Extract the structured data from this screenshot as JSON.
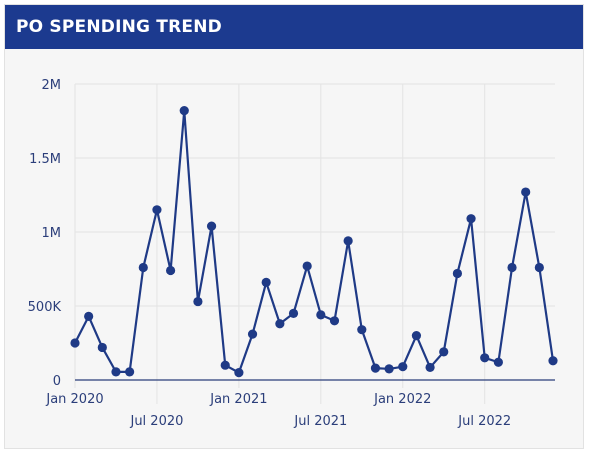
{
  "header": {
    "title": "PO SPENDING TREND"
  },
  "colors": {
    "header_bg": "#1c3a8f",
    "line": "#1f3a86",
    "grid": "#e3e3e3",
    "axis": "#2b3e7a"
  },
  "chart_data": {
    "type": "line",
    "title": "PO SPENDING TREND",
    "xlabel": "",
    "ylabel": "",
    "x": [
      "2020-01",
      "2020-02",
      "2020-03",
      "2020-04",
      "2020-05",
      "2020-06",
      "2020-07",
      "2020-08",
      "2020-09",
      "2020-10",
      "2020-11",
      "2020-12",
      "2021-01",
      "2021-02",
      "2021-03",
      "2021-04",
      "2021-05",
      "2021-06",
      "2021-07",
      "2021-08",
      "2021-09",
      "2021-10",
      "2021-11",
      "2021-12",
      "2022-01",
      "2022-02",
      "2022-03",
      "2022-04",
      "2022-05",
      "2022-06",
      "2022-07",
      "2022-08",
      "2022-09",
      "2022-10",
      "2022-11",
      "2022-12"
    ],
    "series": [
      {
        "values": [
          250000,
          430000,
          220000,
          55000,
          55000,
          760000,
          1150000,
          740000,
          1820000,
          530000,
          1040000,
          100000,
          50000,
          310000,
          660000,
          380000,
          450000,
          770000,
          440000,
          400000,
          940000,
          340000,
          80000,
          75000,
          90000,
          300000,
          85000,
          190000,
          720000,
          1090000,
          150000,
          120000,
          760000,
          1270000,
          760000,
          130000
        ]
      }
    ],
    "y_ticks": [
      {
        "value": 0,
        "label": "0"
      },
      {
        "value": 500000,
        "label": "500K"
      },
      {
        "value": 1000000,
        "label": "1M"
      },
      {
        "value": 1500000,
        "label": "1.5M"
      },
      {
        "value": 2000000,
        "label": "2M"
      }
    ],
    "x_ticks": [
      {
        "index": 0,
        "label": "Jan 2020",
        "row": 0
      },
      {
        "index": 6,
        "label": "Jul 2020",
        "row": 1
      },
      {
        "index": 12,
        "label": "Jan 2021",
        "row": 0
      },
      {
        "index": 18,
        "label": "Jul 2021",
        "row": 1
      },
      {
        "index": 24,
        "label": "Jan 2022",
        "row": 0
      },
      {
        "index": 30,
        "label": "Jul 2022",
        "row": 1
      }
    ],
    "ylim": [
      0,
      2000000
    ],
    "grid": true,
    "legend": "none"
  }
}
